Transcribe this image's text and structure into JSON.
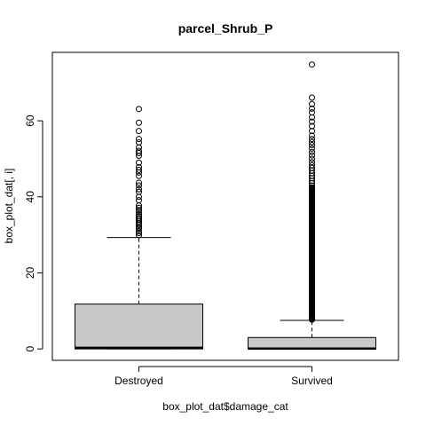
{
  "chart_data": {
    "type": "boxplot",
    "title": "parcel_Shrub_P",
    "xlabel": "box_plot_dat$damage_cat",
    "ylabel": "box_plot_dat[, i]",
    "ylim": [
      -3,
      78
    ],
    "yticks": [
      0,
      20,
      40,
      60
    ],
    "grid": false,
    "legend": "none",
    "box_fill": "#c8c8c8",
    "categories": [
      "Destroyed",
      "Survived"
    ],
    "boxes": [
      {
        "name": "Destroyed",
        "whisker_low": 0,
        "q1": 0,
        "median": 0.3,
        "q3": 11.8,
        "whisker_high": 29.3,
        "outliers": [
          29.9,
          30.5,
          31.0,
          31.6,
          32.0,
          32.6,
          33.0,
          33.5,
          34.0,
          34.4,
          34.9,
          35.4,
          36.0,
          36.5,
          37.1,
          37.7,
          39.1,
          40.0,
          41.3,
          42.0,
          43.0,
          43.7,
          45.5,
          46.4,
          47.1,
          47.8,
          49.0,
          50.8,
          51.5,
          52.1,
          53.0,
          54.3,
          55.2,
          57.3,
          59.5,
          63.1
        ]
      },
      {
        "name": "Survived",
        "whisker_low": 0,
        "q1": 0,
        "median": 0.1,
        "q3": 3.0,
        "whisker_high": 7.5,
        "outliers_dense_range": [
          7.7,
          42.5
        ],
        "outliers": [
          43.0,
          43.6,
          44.2,
          44.9,
          45.5,
          46.2,
          46.9,
          47.6,
          48.3,
          49.1,
          50.0,
          50.9,
          51.8,
          52.7,
          53.6,
          54.4,
          55.2,
          56.1,
          57.3,
          58.6,
          59.8,
          60.9,
          62.2,
          63.2,
          64.4,
          66.1,
          74.8
        ]
      }
    ]
  }
}
